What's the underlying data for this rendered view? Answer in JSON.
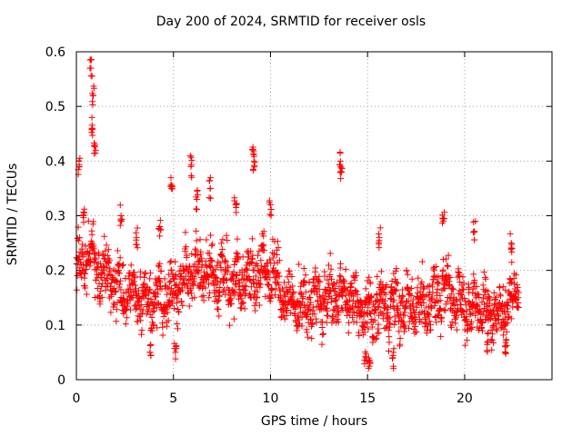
{
  "chart_data": {
    "type": "scatter",
    "title": "Day 200 of 2024, SRMTID for receiver osls",
    "xlabel": "GPS time / hours",
    "ylabel": "SRMTID / TECUs",
    "xlim": [
      0,
      24.5
    ],
    "ylim": [
      0,
      0.6
    ],
    "xticks": [
      0,
      5,
      10,
      15,
      20
    ],
    "yticks": [
      0,
      0.1,
      0.2,
      0.3,
      0.4,
      0.5,
      0.6
    ],
    "xtick_labels": [
      "0",
      "5",
      "10",
      "15",
      "20"
    ],
    "ytick_labels": [
      "0",
      "0.1",
      "0.2",
      "0.3",
      "0.4",
      "0.5",
      "0.6"
    ],
    "grid": true,
    "marker": "+",
    "color": "#ff0000",
    "series": [
      {
        "name": "SRMTID",
        "profile": {
          "x": [
            0.0,
            0.3,
            0.7,
            1.0,
            1.5,
            2.0,
            3.0,
            4.0,
            5.0,
            6.0,
            7.0,
            8.0,
            9.0,
            10.0,
            11.0,
            12.0,
            13.0,
            14.0,
            15.0,
            16.0,
            17.0,
            18.0,
            19.0,
            20.0,
            21.0,
            22.0,
            22.8
          ],
          "mean_y": [
            0.2,
            0.22,
            0.24,
            0.2,
            0.19,
            0.17,
            0.16,
            0.14,
            0.16,
            0.2,
            0.19,
            0.18,
            0.19,
            0.2,
            0.14,
            0.14,
            0.15,
            0.15,
            0.12,
            0.14,
            0.13,
            0.14,
            0.16,
            0.14,
            0.13,
            0.12,
            0.17
          ],
          "spread": 0.05
        },
        "peaks": [
          {
            "x": 0.15,
            "y": 0.39
          },
          {
            "x": 0.35,
            "y": 0.3
          },
          {
            "x": 0.75,
            "y": 0.57
          },
          {
            "x": 0.85,
            "y": 0.52
          },
          {
            "x": 0.8,
            "y": 0.46
          },
          {
            "x": 0.95,
            "y": 0.43
          },
          {
            "x": 2.3,
            "y": 0.3
          },
          {
            "x": 3.1,
            "y": 0.26
          },
          {
            "x": 4.3,
            "y": 0.28
          },
          {
            "x": 4.9,
            "y": 0.35
          },
          {
            "x": 5.9,
            "y": 0.39
          },
          {
            "x": 6.2,
            "y": 0.33
          },
          {
            "x": 6.9,
            "y": 0.35
          },
          {
            "x": 8.2,
            "y": 0.32
          },
          {
            "x": 9.1,
            "y": 0.42
          },
          {
            "x": 9.15,
            "y": 0.4
          },
          {
            "x": 10.0,
            "y": 0.32
          },
          {
            "x": 13.6,
            "y": 0.4
          },
          {
            "x": 13.65,
            "y": 0.38
          },
          {
            "x": 15.6,
            "y": 0.26
          },
          {
            "x": 18.9,
            "y": 0.29
          },
          {
            "x": 20.5,
            "y": 0.27
          },
          {
            "x": 22.4,
            "y": 0.25
          }
        ],
        "troughs": [
          {
            "x": 3.8,
            "y": 0.05
          },
          {
            "x": 5.1,
            "y": 0.05
          },
          {
            "x": 14.9,
            "y": 0.04
          },
          {
            "x": 15.1,
            "y": 0.035
          },
          {
            "x": 16.3,
            "y": 0.04
          },
          {
            "x": 21.2,
            "y": 0.07
          },
          {
            "x": 22.1,
            "y": 0.06
          }
        ]
      }
    ]
  }
}
